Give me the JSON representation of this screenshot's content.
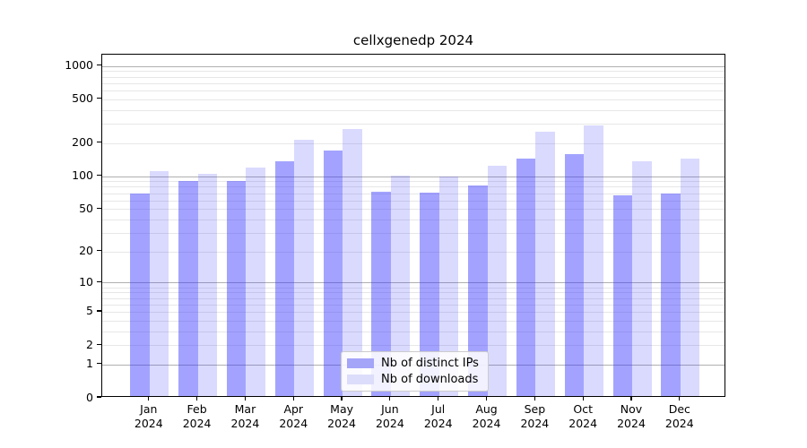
{
  "chart": {
    "title": "cellxgenedp 2024"
  },
  "chart_data": {
    "type": "bar",
    "title": "cellxgenedp 2024",
    "categories": [
      "Jan",
      "Feb",
      "Mar",
      "Apr",
      "May",
      "Jun",
      "Jul",
      "Aug",
      "Sep",
      "Oct",
      "Nov",
      "Dec"
    ],
    "x_sub_label": "2024",
    "series": [
      {
        "name": "Nb of distinct IPs",
        "color": "rgba(51,51,255,0.45)",
        "legend_color": "#a4a4f9",
        "values": [
          70,
          90,
          90,
          137,
          170,
          72,
          71,
          82,
          145,
          158,
          67,
          70
        ]
      },
      {
        "name": "Nb of downloads",
        "color": "rgba(51,51,255,0.18)",
        "legend_color": "#dcdcfb",
        "values": [
          112,
          105,
          120,
          214,
          270,
          101,
          99,
          125,
          254,
          288,
          137,
          145
        ]
      }
    ],
    "yscale": "log1p",
    "yticks": [
      0,
      1,
      2,
      5,
      10,
      20,
      50,
      100,
      200,
      500,
      1000
    ],
    "ylim": [
      0,
      1270
    ],
    "xlabel": "",
    "ylabel": "",
    "grid": "on",
    "grid_major_color": "#b0b0b0",
    "grid_minor_color": "#e7e7e7",
    "legend_position": "lower center"
  }
}
